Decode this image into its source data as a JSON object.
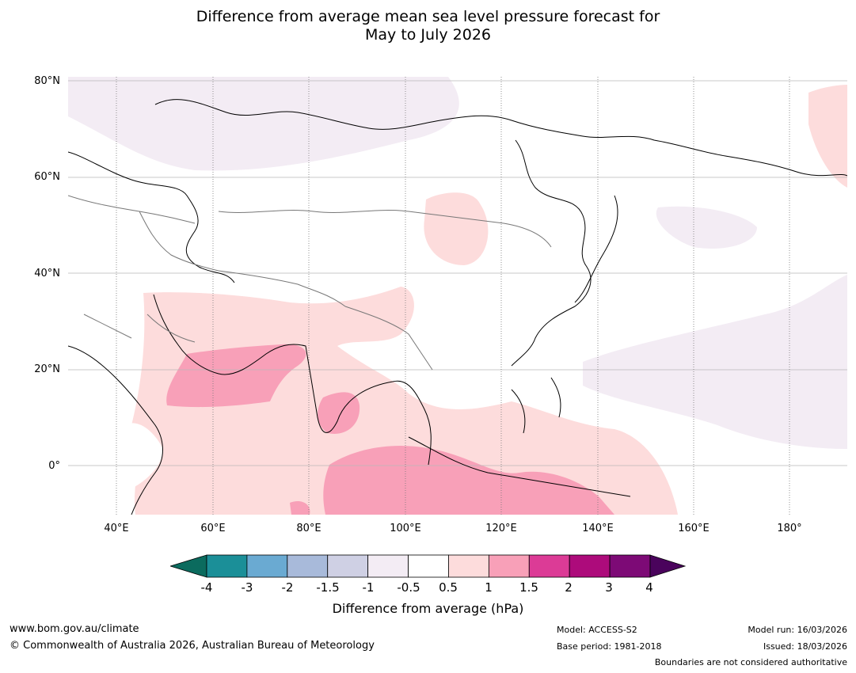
{
  "title_line1": "Difference from average mean sea level pressure forecast for",
  "title_line2": "May to July 2026",
  "map": {
    "lat_labels": [
      "80°N",
      "60°N",
      "40°N",
      "20°N",
      "0°"
    ],
    "lon_labels": [
      "40°E",
      "60°E",
      "80°E",
      "100°E",
      "120°E",
      "140°E",
      "160°E",
      "180°"
    ],
    "extent": {
      "lon_min": 30,
      "lon_max": 192,
      "lat_min": -10,
      "lat_max": 81
    }
  },
  "colorbar": {
    "title": "Difference from average (hPa)",
    "ticks": [
      "-4",
      "-3",
      "-2",
      "-1.5",
      "-1",
      "-0.5",
      "0.5",
      "1",
      "1.5",
      "2",
      "3",
      "4"
    ],
    "colors": {
      "below_min": "#0b6b5e",
      "bins": [
        "#1b8f98",
        "#6aaad2",
        "#a8bada",
        "#cfd0e4",
        "#f3ecf4",
        "#ffffff",
        "#fddcdc",
        "#f8a0b8",
        "#dc3b96",
        "#ad0b7b",
        "#7d0a76"
      ],
      "above_max": "#4a035c"
    }
  },
  "footer": {
    "website": "www.bom.gov.au/climate",
    "copyright": "© Commonwealth of Australia 2026, Australian Bureau of Meteorology",
    "model": "Model: ACCESS-S2",
    "base_period": "Base period: 1981-2018",
    "model_run": "Model run: 16/03/2026",
    "issued": "Issued: 18/03/2026",
    "disclaimer": "Boundaries are not considered authoritative"
  }
}
